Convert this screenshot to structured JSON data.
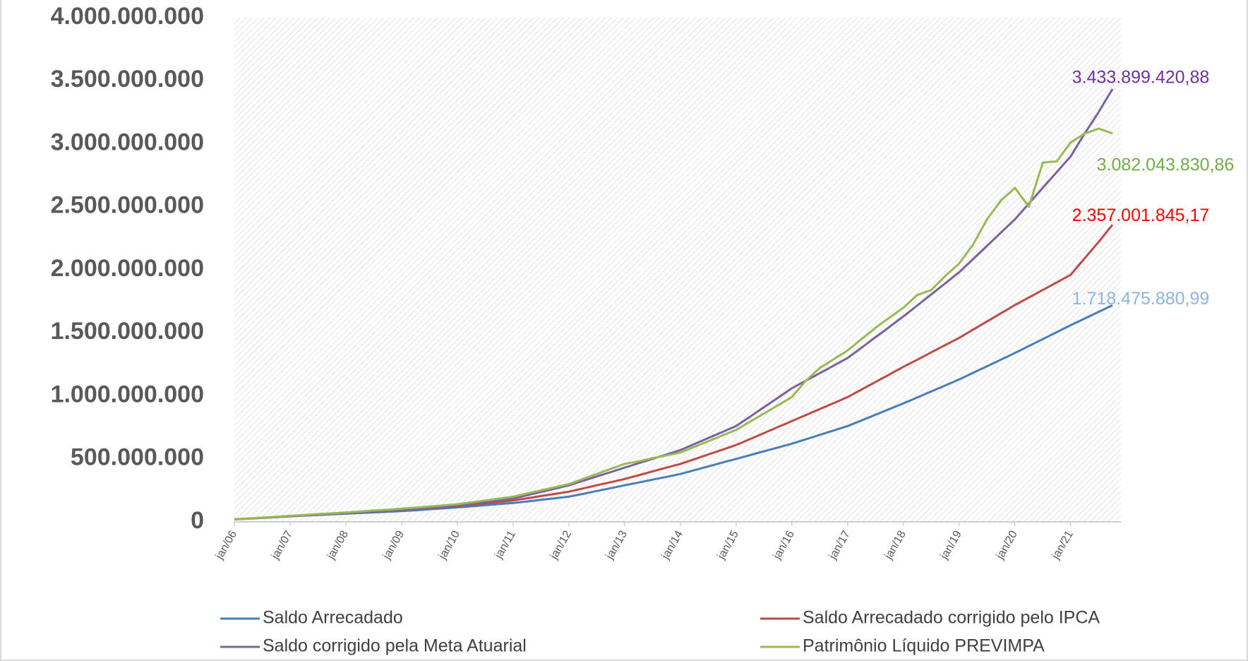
{
  "chart_data": {
    "type": "line",
    "categories": [
      "jan/06",
      null,
      null,
      null,
      "jan/07",
      null,
      null,
      null,
      "jan/08",
      null,
      null,
      null,
      "jan/09",
      null,
      null,
      null,
      "jan/10",
      null,
      null,
      null,
      "jan/11",
      null,
      null,
      null,
      "jan/12",
      null,
      null,
      null,
      "jan/13",
      null,
      null,
      null,
      "jan/14",
      null,
      null,
      null,
      "jan/15",
      null,
      null,
      null,
      "jan/16",
      null,
      null,
      null,
      "jan/17",
      null,
      null,
      null,
      "jan/18",
      null,
      null,
      null,
      "jan/19",
      null,
      null,
      null,
      "jan/20",
      null,
      null,
      null,
      "jan/21",
      null,
      null,
      null
    ],
    "series": [
      {
        "name": "Saldo Arrecadado",
        "color": "#4a7ebb",
        "label_color": "#8db4e2",
        "values": [
          20000000.0,
          26000000.0,
          32000000.0,
          38000000.0,
          45000000.0,
          50000000.0,
          55000000.0,
          60000000.0,
          65000000.0,
          70000000.0,
          75000000.0,
          80000000.0,
          85000000.0,
          92000000.0,
          100000000.0,
          107000000.0,
          115000000.0,
          123000000.0,
          132000000.0,
          141000000.0,
          150000000.0,
          162000000.0,
          175000000.0,
          187000000.0,
          200000000.0,
          222000000.0,
          245000000.0,
          267000000.0,
          290000000.0,
          312000000.0,
          335000000.0,
          357000000.0,
          380000000.0,
          410000000.0,
          440000000.0,
          470000000.0,
          500000000.0,
          530000000.0,
          560000000.0,
          590000000.0,
          620000000.0,
          655000000.0,
          690000000.0,
          725000000.0,
          760000000.0,
          805000000.0,
          850000000.0,
          895000000.0,
          940000000.0,
          987000000.0,
          1035000000.0,
          1082000000.0,
          1130000000.0,
          1182000000.0,
          1235000000.0,
          1287000000.0,
          1340000000.0,
          1395000000.0,
          1450000000.0,
          1505000000.0,
          1560000000.0,
          1613000000.0,
          1666000000.0,
          1718475880.99
        ],
        "value_labels": [
          null,
          null,
          null,
          null,
          null,
          null,
          null,
          null,
          null,
          null,
          null,
          null,
          null,
          null,
          null,
          null,
          null,
          null,
          null,
          null,
          null,
          null,
          null,
          null,
          null,
          null,
          null,
          null,
          null,
          null,
          null,
          null,
          null,
          null,
          null,
          null,
          null,
          null,
          null,
          null,
          null,
          null,
          null,
          null,
          null,
          null,
          null,
          null,
          null,
          null,
          null,
          null,
          null,
          null,
          null,
          null,
          null,
          null,
          null,
          null,
          null,
          null,
          null,
          "1.718.475.880,99"
        ]
      },
      {
        "name": "Saldo Arrecadado corrigido pelo IPCA",
        "color": "#be4b48",
        "label_color": "#ff0000",
        "values": [
          20000000.0,
          26000000.0,
          32000000.0,
          38000000.0,
          45000000.0,
          51000000.0,
          57000000.0,
          63000000.0,
          70000000.0,
          76000000.0,
          82000000.0,
          88000000.0,
          95000000.0,
          102000000.0,
          110000000.0,
          117000000.0,
          125000000.0,
          136000000.0,
          147000000.0,
          158000000.0,
          170000000.0,
          187000000.0,
          205000000.0,
          222000000.0,
          240000000.0,
          265000000.0,
          290000000.0,
          315000000.0,
          340000000.0,
          370000000.0,
          400000000.0,
          430000000.0,
          460000000.0,
          497000000.0,
          535000000.0,
          572000000.0,
          610000000.0,
          657000000.0,
          705000000.0,
          752000000.0,
          800000000.0,
          847000000.0,
          895000000.0,
          942000000.0,
          990000000.0,
          1050000000.0,
          1110000000.0,
          1170000000.0,
          1230000000.0,
          1287000000.0,
          1345000000.0,
          1402000000.0,
          1460000000.0,
          1525000000.0,
          1590000000.0,
          1655000000.0,
          1720000000.0,
          1780000000.0,
          1840000000.0,
          1900000000.0,
          1960000000.0,
          2090000000.0,
          2220000000.0,
          2357001845.17
        ],
        "value_labels": [
          null,
          null,
          null,
          null,
          null,
          null,
          null,
          null,
          null,
          null,
          null,
          null,
          null,
          null,
          null,
          null,
          null,
          null,
          null,
          null,
          null,
          null,
          null,
          null,
          null,
          null,
          null,
          null,
          null,
          null,
          null,
          null,
          null,
          null,
          null,
          null,
          null,
          null,
          null,
          null,
          null,
          null,
          null,
          null,
          null,
          null,
          null,
          null,
          null,
          null,
          null,
          null,
          null,
          null,
          null,
          null,
          null,
          null,
          null,
          null,
          null,
          null,
          null,
          "2.357.001.845,17"
        ]
      },
      {
        "name": "Saldo corrigido pela Meta Atuarial",
        "color": "#7d60a0",
        "label_color": "#7030a0",
        "values": [
          20000000.0,
          26000000.0,
          32000000.0,
          38000000.0,
          45000000.0,
          51000000.0,
          57000000.0,
          63000000.0,
          70000000.0,
          76000000.0,
          82000000.0,
          88000000.0,
          95000000.0,
          104000000.0,
          112000000.0,
          121000000.0,
          130000000.0,
          144000000.0,
          157000000.0,
          171000000.0,
          185000000.0,
          211000000.0,
          237000000.0,
          263000000.0,
          290000000.0,
          325000000.0,
          360000000.0,
          395000000.0,
          430000000.0,
          465000000.0,
          500000000.0,
          535000000.0,
          570000000.0,
          617000000.0,
          665000000.0,
          712000000.0,
          760000000.0,
          835000000.0,
          910000000.0,
          985000000.0,
          1060000000.0,
          1120000000.0,
          1180000000.0,
          1240000000.0,
          1300000000.0,
          1382000000.0,
          1465000000.0,
          1547000000.0,
          1630000000.0,
          1717000000.0,
          1805000000.0,
          1892000000.0,
          1980000000.0,
          2085000000.0,
          2190000000.0,
          2295000000.0,
          2400000000.0,
          2525000000.0,
          2650000000.0,
          2775000000.0,
          2900000000.0,
          3080000000.0,
          3250000000.0,
          3433899420.88
        ],
        "value_labels": [
          null,
          null,
          null,
          null,
          null,
          null,
          null,
          null,
          null,
          null,
          null,
          null,
          null,
          null,
          null,
          null,
          null,
          null,
          null,
          null,
          null,
          null,
          null,
          null,
          null,
          null,
          null,
          null,
          null,
          null,
          null,
          null,
          null,
          null,
          null,
          null,
          null,
          null,
          null,
          null,
          null,
          null,
          null,
          null,
          null,
          null,
          null,
          null,
          null,
          null,
          null,
          null,
          null,
          null,
          null,
          null,
          null,
          null,
          null,
          null,
          null,
          null,
          null,
          "3.433.899.420,88"
        ]
      },
      {
        "name": "Patrimônio Líquido PREVIMPA",
        "color": "#98b954",
        "label_color": "#70ad47",
        "values": [
          20000000.0,
          27000000.0,
          34000000.0,
          41000000.0,
          48000000.0,
          55000000.0,
          62000000.0,
          68000000.0,
          75000000.0,
          82000000.0,
          90000000.0,
          97000000.0,
          105000000.0,
          114000000.0,
          122000000.0,
          131000000.0,
          140000000.0,
          155000000.0,
          170000000.0,
          185000000.0,
          200000000.0,
          225000000.0,
          250000000.0,
          275000000.0,
          300000000.0,
          340000000.0,
          380000000.0,
          420000000.0,
          460000000.0,
          480000000.0,
          505000000.0,
          527000000.0,
          550000000.0,
          595000000.0,
          640000000.0,
          685000000.0,
          730000000.0,
          795000000.0,
          860000000.0,
          925000000.0,
          990000000.0,
          1120000000.0,
          1220000000.0,
          1290000000.0,
          1360000000.0,
          1450000000.0,
          1540000000.0,
          1620000000.0,
          1700000000.0,
          1800000000.0,
          1840000000.0,
          1950000000.0,
          2050000000.0,
          2200000000.0,
          2400000000.0,
          2550000000.0,
          2650000000.0,
          2500000000.0,
          2850000000.0,
          2860000000.0,
          3010000000.0,
          3080000000.0,
          3120000000.0,
          3082043830.86
        ],
        "value_labels": [
          null,
          null,
          null,
          null,
          null,
          null,
          null,
          null,
          null,
          null,
          null,
          null,
          null,
          null,
          null,
          null,
          null,
          null,
          null,
          null,
          null,
          null,
          null,
          null,
          null,
          null,
          null,
          null,
          null,
          null,
          null,
          null,
          null,
          null,
          null,
          null,
          null,
          null,
          null,
          null,
          null,
          null,
          null,
          null,
          null,
          null,
          null,
          null,
          null,
          null,
          null,
          null,
          null,
          null,
          null,
          null,
          null,
          null,
          null,
          null,
          null,
          null,
          null,
          "3.082.043.830,86"
        ]
      }
    ],
    "ylim": [
      0,
      4000000000
    ],
    "yticks": [
      0,
      {
        "value": 500000000,
        "label": "500.000.000"
      },
      {
        "value": 1000000000,
        "label": "1.000.000.000"
      },
      {
        "value": 1500000000,
        "label": "1.500.000.000"
      },
      {
        "value": 2000000000,
        "label": "2.000.000.000"
      },
      {
        "value": 2500000000,
        "label": "2.500.000.000"
      },
      {
        "value": 3000000000,
        "label": "3.000.000.000"
      },
      {
        "value": 3500000000,
        "label": "3.500.000.000"
      },
      {
        "value": 4000000000,
        "label": "4.000.000.000"
      }
    ],
    "grid": false
  }
}
